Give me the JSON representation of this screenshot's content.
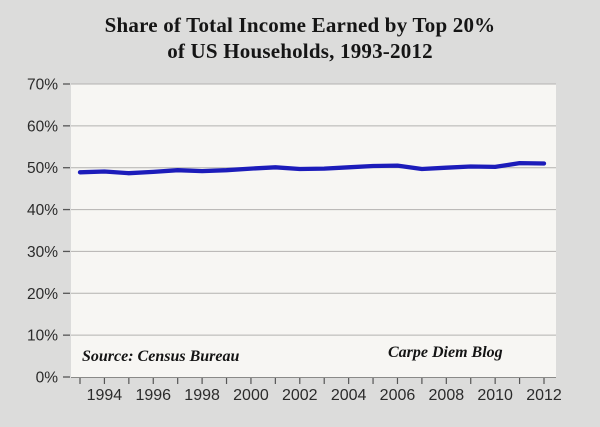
{
  "title": {
    "line1": "Share of Total Income Earned by Top 20%",
    "line2": "of US Households, 1993-2012"
  },
  "annotations": {
    "source": "Source: Census Bureau",
    "credit": "Carpe Diem Blog"
  },
  "colors": {
    "background": "#dcdcdb",
    "plot_background": "#f7f6f3",
    "gridline": "#b3b2b0",
    "axis": "#8a8a88",
    "tick": "#555555",
    "label_text": "#2b2b2b",
    "title_text": "#151515",
    "line": "#1c1cba"
  },
  "chart_data": {
    "type": "line",
    "title": "Share of Total Income Earned by Top 20% of US Households, 1993-2012",
    "xlabel": "",
    "ylabel": "",
    "x": [
      1993,
      1994,
      1995,
      1996,
      1997,
      1998,
      1999,
      2000,
      2001,
      2002,
      2003,
      2004,
      2005,
      2006,
      2007,
      2008,
      2009,
      2010,
      2011,
      2012
    ],
    "series": [
      {
        "name": "Share of total income earned by top 20% of US households",
        "values": [
          48.9,
          49.1,
          48.7,
          49.0,
          49.4,
          49.2,
          49.4,
          49.8,
          50.1,
          49.7,
          49.8,
          50.1,
          50.4,
          50.5,
          49.7,
          50.0,
          50.3,
          50.2,
          51.1,
          51.0
        ]
      }
    ],
    "ylim": [
      0,
      70
    ],
    "ytick_step": 10,
    "ytick_suffix": "%",
    "xtick_label_years": [
      1994,
      1996,
      1998,
      2000,
      2002,
      2004,
      2006,
      2008,
      2010,
      2012
    ],
    "grid": true,
    "legend_position": "none"
  }
}
